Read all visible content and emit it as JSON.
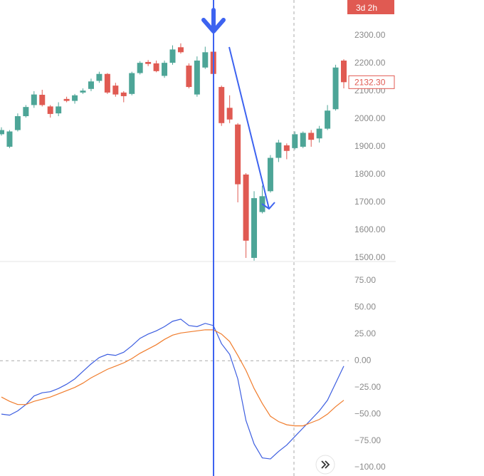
{
  "chart_data": [
    {
      "type": "candlestick",
      "categories": [
        null,
        null,
        null,
        null,
        null,
        null,
        null,
        null,
        null,
        null,
        null,
        null,
        null,
        null,
        null,
        null,
        null,
        null,
        null,
        null,
        null,
        null,
        null,
        null,
        null,
        null,
        null,
        null,
        null,
        null,
        null,
        null,
        null,
        null,
        null,
        null,
        null,
        null,
        null,
        null,
        null,
        null,
        null
      ],
      "open": [
        1945,
        1900,
        1960,
        2010,
        2050,
        2087,
        2045,
        2020,
        2072,
        2065,
        2095,
        2108,
        2137,
        2162,
        2120,
        2095,
        2090,
        2165,
        2205,
        2200,
        2155,
        2202,
        2258,
        2192,
        2088,
        2185,
        2242,
        2115,
        2040,
        1980,
        1800,
        1500,
        1665,
        1740,
        1860,
        1905,
        1895,
        1900,
        1950,
        1930,
        1965,
        2035,
        2210
      ],
      "high": [
        1970,
        1960,
        2020,
        2050,
        2100,
        2105,
        2050,
        2060,
        2080,
        2090,
        2110,
        2145,
        2170,
        2165,
        2130,
        2100,
        2170,
        2208,
        2212,
        2210,
        2210,
        2265,
        2272,
        2200,
        2225,
        2260,
        2250,
        2120,
        2085,
        1985,
        1805,
        1740,
        1760,
        1870,
        1925,
        1912,
        1955,
        1955,
        1960,
        1975,
        2050,
        2195,
        2215
      ],
      "low": [
        1940,
        1895,
        1955,
        2005,
        2040,
        2045,
        2005,
        2010,
        2060,
        2055,
        2090,
        2100,
        2130,
        2090,
        2080,
        2060,
        2085,
        2160,
        2190,
        2168,
        2148,
        2195,
        2235,
        2110,
        2080,
        2180,
        2158,
        1975,
        1985,
        1700,
        1500,
        1490,
        1660,
        1735,
        1845,
        1855,
        1890,
        1895,
        1900,
        1915,
        1960,
        2030,
        2110
      ],
      "close": [
        1960,
        1955,
        2010,
        2043,
        2088,
        2050,
        2018,
        2045,
        2065,
        2085,
        2102,
        2135,
        2162,
        2095,
        2088,
        2082,
        2165,
        2202,
        2198,
        2172,
        2202,
        2250,
        2240,
        2115,
        2210,
        2240,
        2162,
        1985,
        1998,
        1765,
        1562,
        1715,
        1722,
        1860,
        1915,
        1885,
        1945,
        1950,
        1925,
        1965,
        2030,
        2185,
        2132.3
      ],
      "up_color": "#4da597",
      "down_color": "#e05a52",
      "ylim": [
        1487,
        2428
      ],
      "yticks": [
        {
          "value": 2300,
          "label": "2300.00"
        },
        {
          "value": 2200,
          "label": "2200.00"
        },
        {
          "value": 2100,
          "label": "2100.00"
        },
        {
          "value": 2000,
          "label": "2000.00"
        },
        {
          "value": 1900,
          "label": "1900.00"
        },
        {
          "value": 1800,
          "label": "1800.00"
        },
        {
          "value": 1700,
          "label": "1700.00"
        },
        {
          "value": 1600,
          "label": "1600.00"
        },
        {
          "value": 1500,
          "label": "1500.00"
        }
      ],
      "last_value_label": "2132.30",
      "countdown": "3d 2h"
    },
    {
      "type": "line",
      "categories": [
        null,
        null,
        null,
        null,
        null,
        null,
        null,
        null,
        null,
        null,
        null,
        null,
        null,
        null,
        null,
        null,
        null,
        null,
        null,
        null,
        null,
        null,
        null,
        null,
        null,
        null,
        null,
        null,
        null,
        null,
        null,
        null,
        null,
        null,
        null,
        null,
        null,
        null,
        null,
        null,
        null,
        null,
        null
      ],
      "series": [
        {
          "color": "#3d5ee0",
          "values": [
            -50,
            -51,
            -47,
            -41,
            -33,
            -30,
            -29,
            -26,
            -22,
            -17,
            -10,
            -3,
            3,
            6,
            5,
            8,
            14,
            21,
            25,
            28,
            32,
            37,
            39,
            33,
            32,
            35,
            33,
            16,
            6,
            -17,
            -56,
            -78,
            -91,
            -92,
            -85,
            -79,
            -71,
            -63,
            -55,
            -47,
            -37,
            -21,
            -5
          ]
        },
        {
          "color": "#f07c2c",
          "values": [
            -34,
            -38,
            -41,
            -41,
            -38,
            -36,
            -34,
            -31,
            -28,
            -25,
            -21,
            -16,
            -12,
            -8,
            -5,
            -2,
            2,
            7,
            11,
            15,
            20,
            24,
            26,
            27,
            28,
            29,
            29,
            25,
            18,
            5,
            -9,
            -26,
            -40,
            -52,
            -57,
            -60,
            -61,
            -61,
            -58,
            -55,
            -50,
            -43,
            -37
          ]
        }
      ],
      "ylim": [
        -108,
        93
      ],
      "yticks": [
        {
          "value": 75,
          "label": "75.00"
        },
        {
          "value": 50,
          "label": "50.00"
        },
        {
          "value": 25,
          "label": "25.00"
        },
        {
          "value": 0,
          "label": "0.00"
        },
        {
          "value": -25,
          "label": "−25.00"
        },
        {
          "value": -50,
          "label": "−50.00"
        },
        {
          "value": -75,
          "label": "−75.00"
        },
        {
          "value": -100,
          "label": "−100.00"
        }
      ],
      "zero_line": true
    }
  ]
}
